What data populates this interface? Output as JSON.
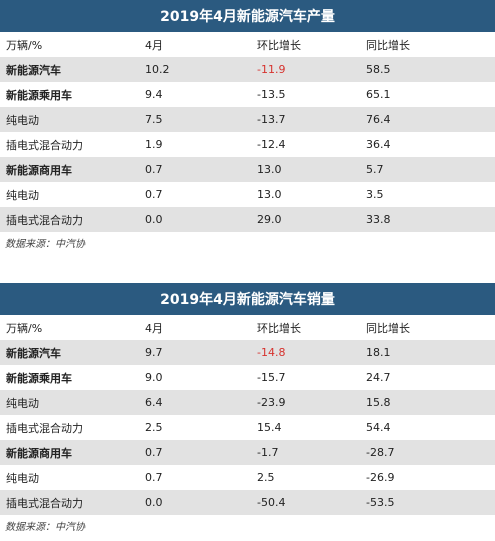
{
  "production": {
    "title": "2019年4月新能源汽车产量",
    "headers": [
      "万辆/%",
      "4月",
      "环比增长",
      "同比增长"
    ],
    "rows": [
      {
        "cells": [
          "新能源汽车",
          "10.2",
          "-11.9",
          "58.5"
        ],
        "bold": true,
        "highlight": true
      },
      {
        "cells": [
          "新能源乘用车",
          "9.4",
          "-13.5",
          "65.1"
        ],
        "bold": true,
        "highlight": false
      },
      {
        "cells": [
          "纯电动",
          "7.5",
          "-13.7",
          "76.4"
        ],
        "bold": false,
        "highlight": false
      },
      {
        "cells": [
          "插电式混合动力",
          "1.9",
          "-12.4",
          "36.4"
        ],
        "bold": false,
        "highlight": false
      },
      {
        "cells": [
          "新能源商用车",
          "0.7",
          "13.0",
          "5.7"
        ],
        "bold": true,
        "highlight": false
      },
      {
        "cells": [
          "纯电动",
          "0.7",
          "13.0",
          "3.5"
        ],
        "bold": false,
        "highlight": false
      },
      {
        "cells": [
          "插电式混合动力",
          "0.0",
          "29.0",
          "33.8"
        ],
        "bold": false,
        "highlight": false
      }
    ],
    "source": "数据来源：中汽协"
  },
  "sales": {
    "title": "2019年4月新能源汽车销量",
    "headers": [
      "万辆/%",
      "4月",
      "环比增长",
      "同比增长"
    ],
    "rows": [
      {
        "cells": [
          "新能源汽车",
          "9.7",
          "-14.8",
          "18.1"
        ],
        "bold": true,
        "highlight": true
      },
      {
        "cells": [
          "新能源乘用车",
          "9.0",
          "-15.7",
          "24.7"
        ],
        "bold": true,
        "highlight": false
      },
      {
        "cells": [
          "纯电动",
          "6.4",
          "-23.9",
          "15.8"
        ],
        "bold": false,
        "highlight": false
      },
      {
        "cells": [
          "插电式混合动力",
          "2.5",
          "15.4",
          "54.4"
        ],
        "bold": false,
        "highlight": false
      },
      {
        "cells": [
          "新能源商用车",
          "0.7",
          "-1.7",
          "-28.7"
        ],
        "bold": true,
        "highlight": false
      },
      {
        "cells": [
          "纯电动",
          "0.7",
          "2.5",
          "-26.9"
        ],
        "bold": false,
        "highlight": false
      },
      {
        "cells": [
          "插电式混合动力",
          "0.0",
          "-50.4",
          "-53.5"
        ],
        "bold": false,
        "highlight": false
      }
    ],
    "source": "数据来源：中汽协"
  },
  "colors": {
    "title_bg": "#2b5a80",
    "alt_row_bg": "#e2e2e2",
    "highlight_text": "#d6322e"
  }
}
